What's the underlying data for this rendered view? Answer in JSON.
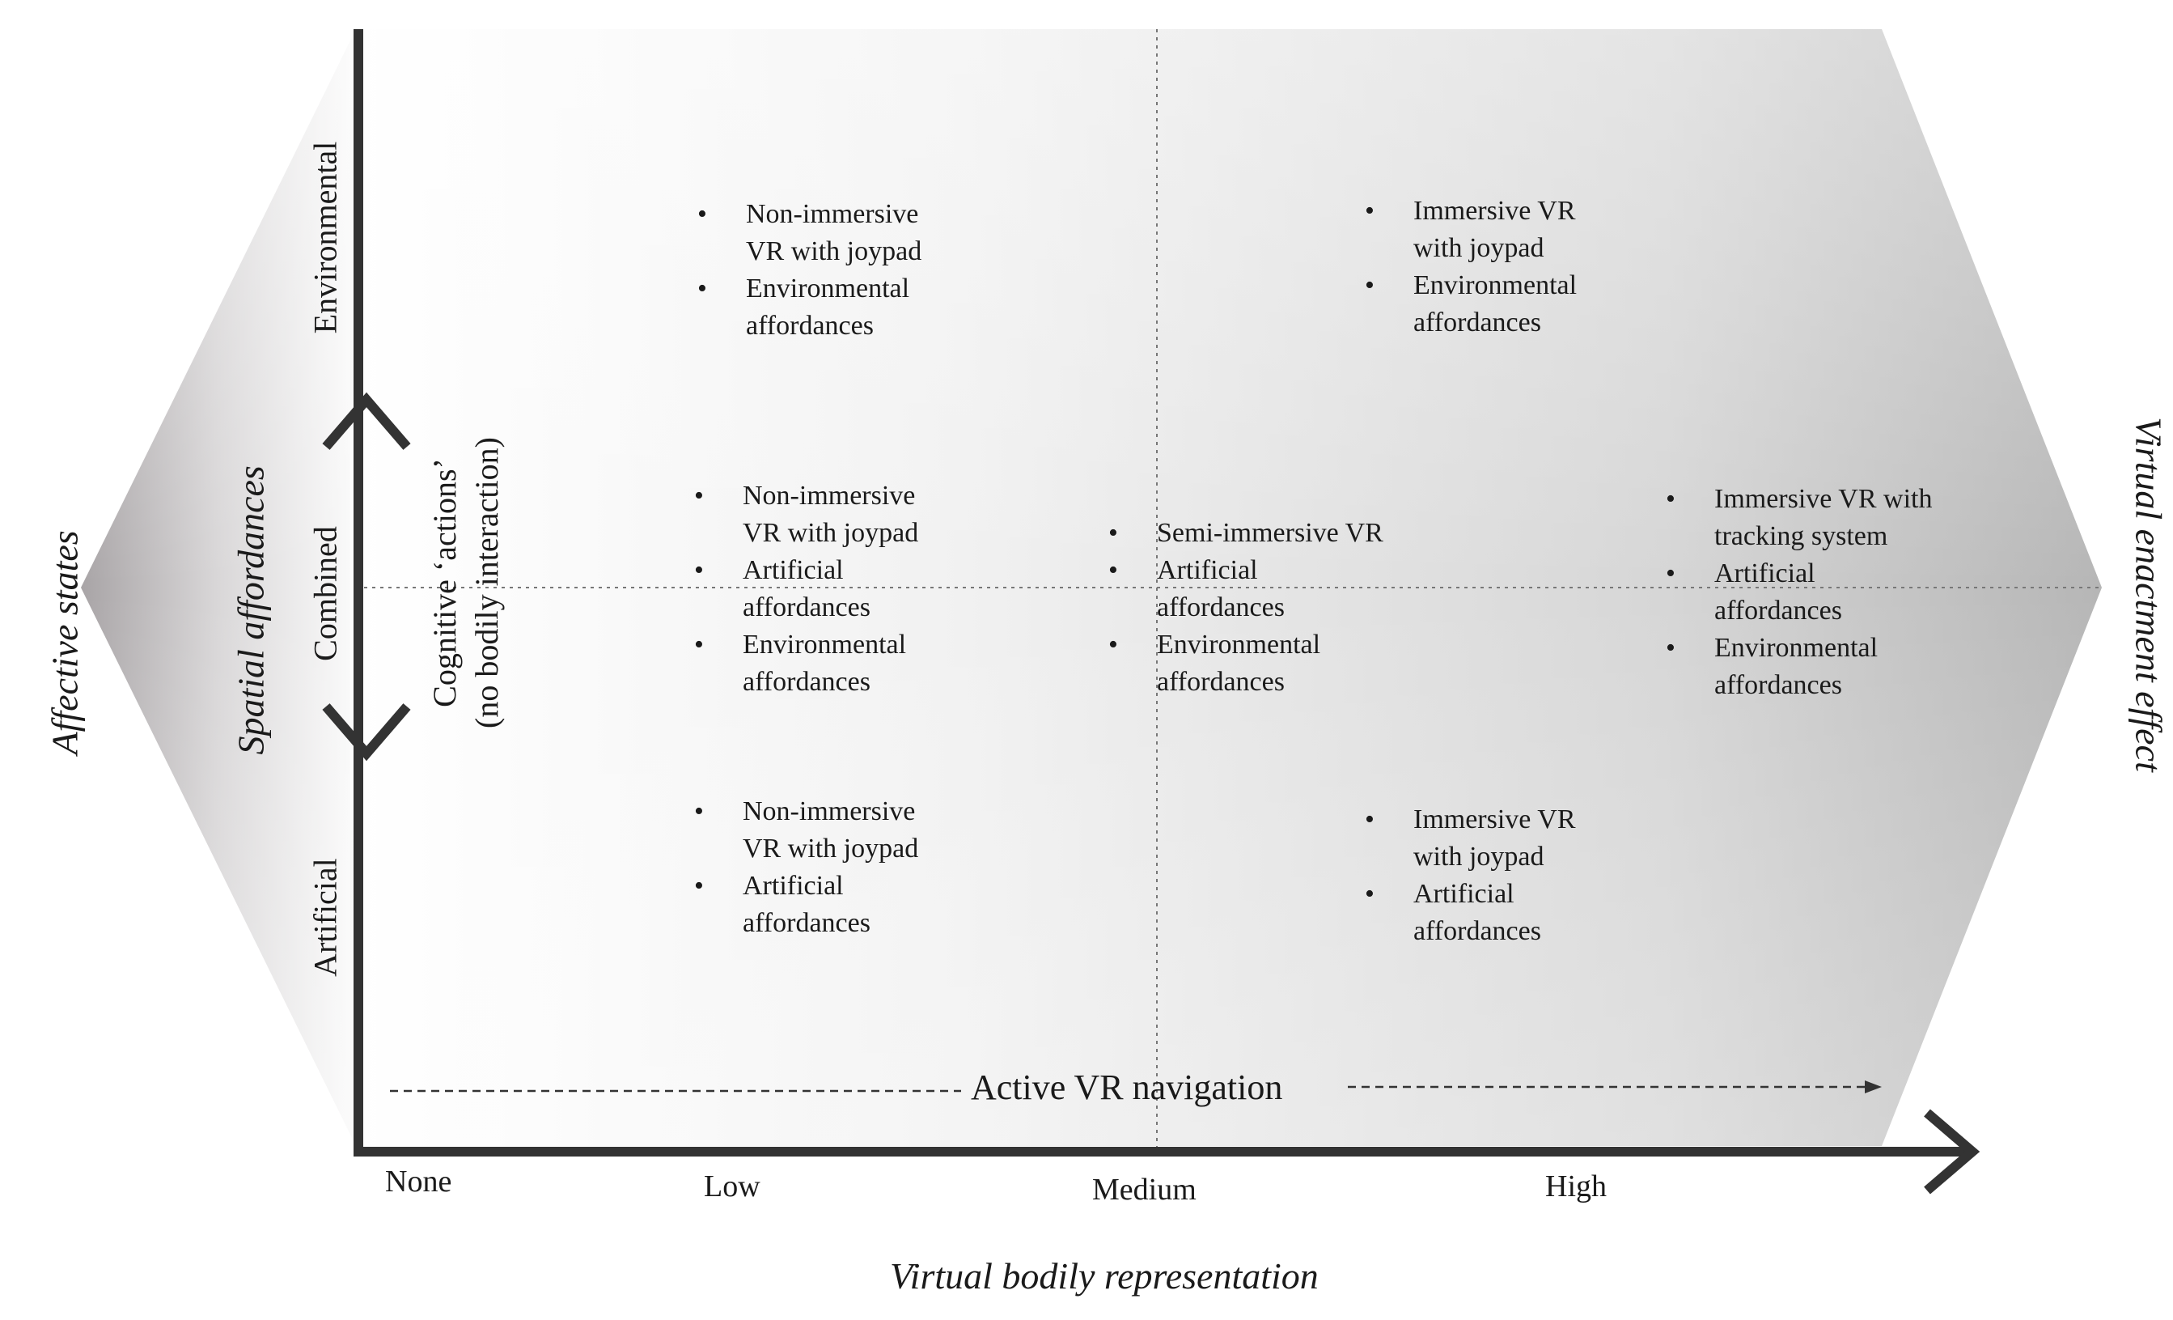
{
  "diagram": {
    "left_outer_label": "Affective states",
    "left_axis_title": "Spatial affordances",
    "right_outer_label": "Virtual enactment effect",
    "x_axis_title": "Virtual bodily representation",
    "y_levels": [
      "Environmental",
      "Combined",
      "Artificial"
    ],
    "x_levels": [
      "None",
      "Low",
      "Medium",
      "High"
    ],
    "cognitive_label_line1": "Cognitive ‘actions’",
    "cognitive_label_line2": "(no bodily interaction)",
    "navigation_label": "Active VR navigation",
    "blocks": [
      {
        "id": "low-environmental",
        "items": [
          "Non-immersive VR with joypad",
          "Environmental affordances"
        ]
      },
      {
        "id": "high-environmental",
        "items": [
          "Immersive VR with joypad",
          "Environmental affordances"
        ]
      },
      {
        "id": "low-combined",
        "items": [
          "Non-immersive VR with joypad",
          "Artificial affordances",
          "Environmental affordances"
        ]
      },
      {
        "id": "medium-combined",
        "items": [
          "Semi-immersive VR",
          "Artificial affordances",
          "Environmental affordances"
        ]
      },
      {
        "id": "high-combined",
        "items": [
          "Immersive VR with tracking system",
          "Artificial affordances",
          "Environmental affordances"
        ]
      },
      {
        "id": "low-artificial",
        "items": [
          "Non-immersive VR with joypad",
          "Artificial affordances"
        ]
      },
      {
        "id": "high-artificial",
        "items": [
          "Immersive VR with joypad",
          "Artificial affordances"
        ]
      }
    ]
  }
}
